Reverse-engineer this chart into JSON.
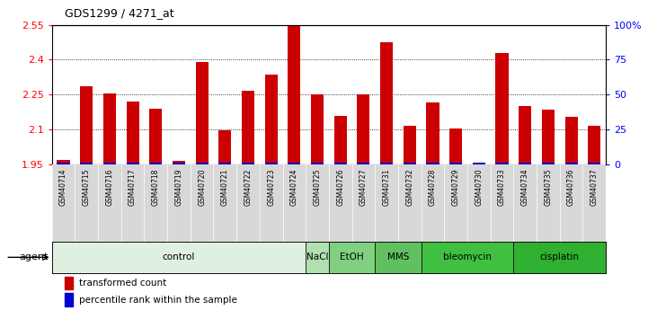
{
  "title": "GDS1299 / 4271_at",
  "samples": [
    "GSM40714",
    "GSM40715",
    "GSM40716",
    "GSM40717",
    "GSM40718",
    "GSM40719",
    "GSM40720",
    "GSM40721",
    "GSM40722",
    "GSM40723",
    "GSM40724",
    "GSM40725",
    "GSM40726",
    "GSM40727",
    "GSM40731",
    "GSM40732",
    "GSM40728",
    "GSM40729",
    "GSM40730",
    "GSM40733",
    "GSM40734",
    "GSM40735",
    "GSM40736",
    "GSM40737"
  ],
  "red_values": [
    1.97,
    2.285,
    2.255,
    2.22,
    2.19,
    1.965,
    2.39,
    2.095,
    2.265,
    2.335,
    2.55,
    2.25,
    2.16,
    2.25,
    2.475,
    2.115,
    2.215,
    2.105,
    1.95,
    2.43,
    2.2,
    2.185,
    2.155,
    2.115
  ],
  "groups": [
    {
      "label": "control",
      "start": 0,
      "end": 10,
      "color": "#e0f0e0"
    },
    {
      "label": "NaCl",
      "start": 11,
      "end": 11,
      "color": "#b0e0b0"
    },
    {
      "label": "EtOH",
      "start": 12,
      "end": 13,
      "color": "#80d080"
    },
    {
      "label": "MMS",
      "start": 14,
      "end": 15,
      "color": "#60c060"
    },
    {
      "label": "bleomycin",
      "start": 16,
      "end": 19,
      "color": "#40c040"
    },
    {
      "label": "cisplatin",
      "start": 20,
      "end": 23,
      "color": "#30b030"
    }
  ],
  "ylim_left": [
    1.95,
    2.55
  ],
  "ylim_right": [
    0,
    100
  ],
  "yticks_left": [
    1.95,
    2.1,
    2.25,
    2.4,
    2.55
  ],
  "yticks_right": [
    0,
    25,
    50,
    75,
    100
  ],
  "ytick_labels_right": [
    "0",
    "25",
    "50",
    "75",
    "100%"
  ],
  "bar_color_red": "#cc0000",
  "bar_color_blue": "#0000cc",
  "bar_width": 0.55,
  "blue_bar_height": 0.008
}
